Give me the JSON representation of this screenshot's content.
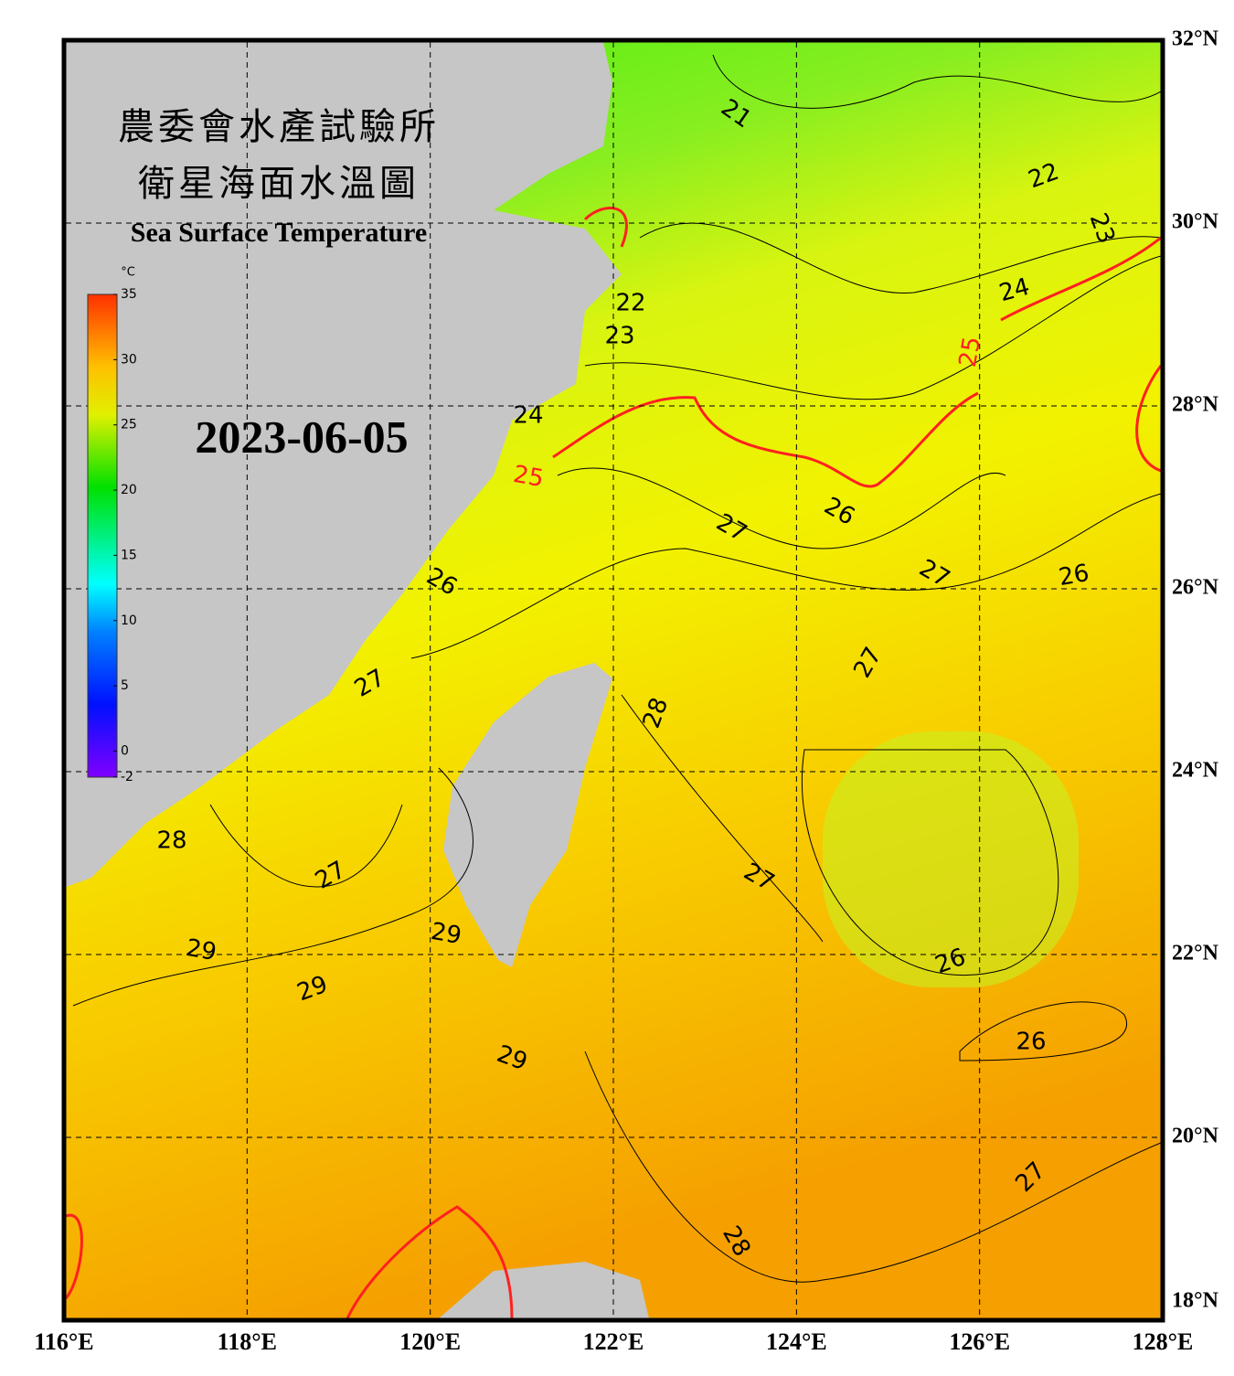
{
  "map": {
    "title_zh": [
      "農委會水產試驗所",
      "衛星海面水溫圖"
    ],
    "title_en": "Sea Surface Temperature",
    "date": "2023-06-05",
    "colorbar": {
      "unit": "°C",
      "range": [
        -2,
        35
      ],
      "ticks": [
        35,
        30,
        25,
        20,
        15,
        10,
        5,
        0,
        -2
      ]
    },
    "lon_ticks": [
      {
        "value": 116,
        "label": "116°E"
      },
      {
        "value": 118,
        "label": "118°E"
      },
      {
        "value": 120,
        "label": "120°E"
      },
      {
        "value": 122,
        "label": "122°E"
      },
      {
        "value": 124,
        "label": "124°E"
      },
      {
        "value": 126,
        "label": "126°E"
      },
      {
        "value": 128,
        "label": "128°E"
      }
    ],
    "lat_ticks": [
      {
        "value": 32,
        "label": "32°N"
      },
      {
        "value": 30,
        "label": "30°N"
      },
      {
        "value": 28,
        "label": "28°N"
      },
      {
        "value": 26,
        "label": "26°N"
      },
      {
        "value": 24,
        "label": "24°N"
      },
      {
        "value": 22,
        "label": "22°N"
      },
      {
        "value": 20,
        "label": "20°N"
      },
      {
        "value": 18,
        "label": "18°N"
      }
    ],
    "contour_labels": [
      21,
      22,
      23,
      24,
      25,
      22,
      23,
      24,
      25,
      26,
      27,
      27,
      26,
      26,
      27,
      27,
      28,
      28,
      27,
      27,
      29,
      29,
      26,
      29,
      29,
      26,
      27,
      28
    ]
  }
}
